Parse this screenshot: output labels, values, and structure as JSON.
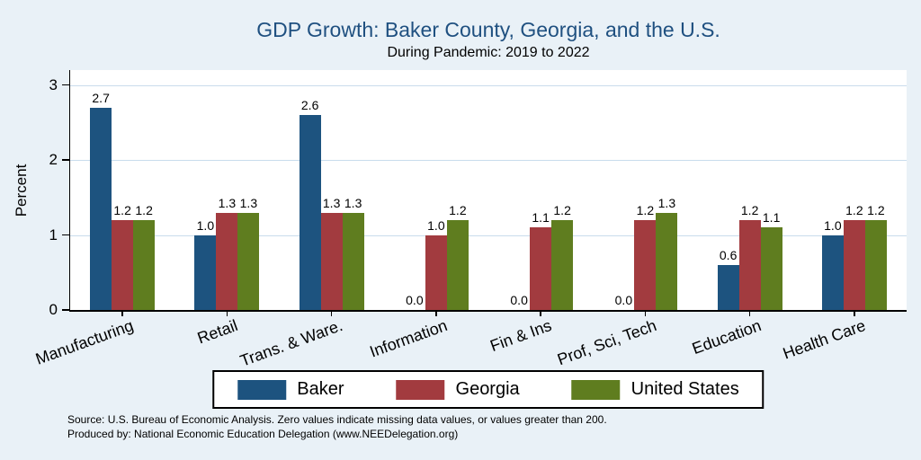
{
  "chart_data": {
    "type": "bar",
    "title": "GDP Growth: Baker County, Georgia, and the U.S.",
    "subtitle": "During Pandemic: 2019 to 2022",
    "xlabel": "",
    "ylabel": "Percent",
    "ylim": [
      0,
      3.2
    ],
    "yticks": [
      0,
      1,
      2,
      3
    ],
    "grid": true,
    "legend_position": "bottom",
    "categories": [
      "Manufacturing",
      "Retail",
      "Trans. & Ware.",
      "Information",
      "Fin & Ins",
      "Prof, Sci, Tech",
      "Education",
      "Health Care"
    ],
    "series": [
      {
        "name": "Baker",
        "color": "#1d537f",
        "values": [
          2.7,
          1.0,
          2.6,
          0.0,
          0.0,
          0.0,
          0.6,
          1.0
        ]
      },
      {
        "name": "Georgia",
        "color": "#a23b3f",
        "values": [
          1.2,
          1.3,
          1.3,
          1.0,
          1.1,
          1.2,
          1.2,
          1.2
        ]
      },
      {
        "name": "United States",
        "color": "#5f7d1f",
        "values": [
          1.2,
          1.3,
          1.3,
          1.2,
          1.2,
          1.3,
          1.1,
          1.2
        ]
      }
    ],
    "colors": {
      "background": "#e9f1f7",
      "plot_background": "#ffffff",
      "title": "#1f5080",
      "grid": "#c9dcec",
      "axis": "#000000"
    }
  },
  "footer": {
    "source": "Source: U.S. Bureau of Economic Analysis. Zero values indicate missing data values, or values greater than 200.",
    "produced_by": "Produced by: National Economic Education Delegation (www.NEEDelegation.org)"
  }
}
